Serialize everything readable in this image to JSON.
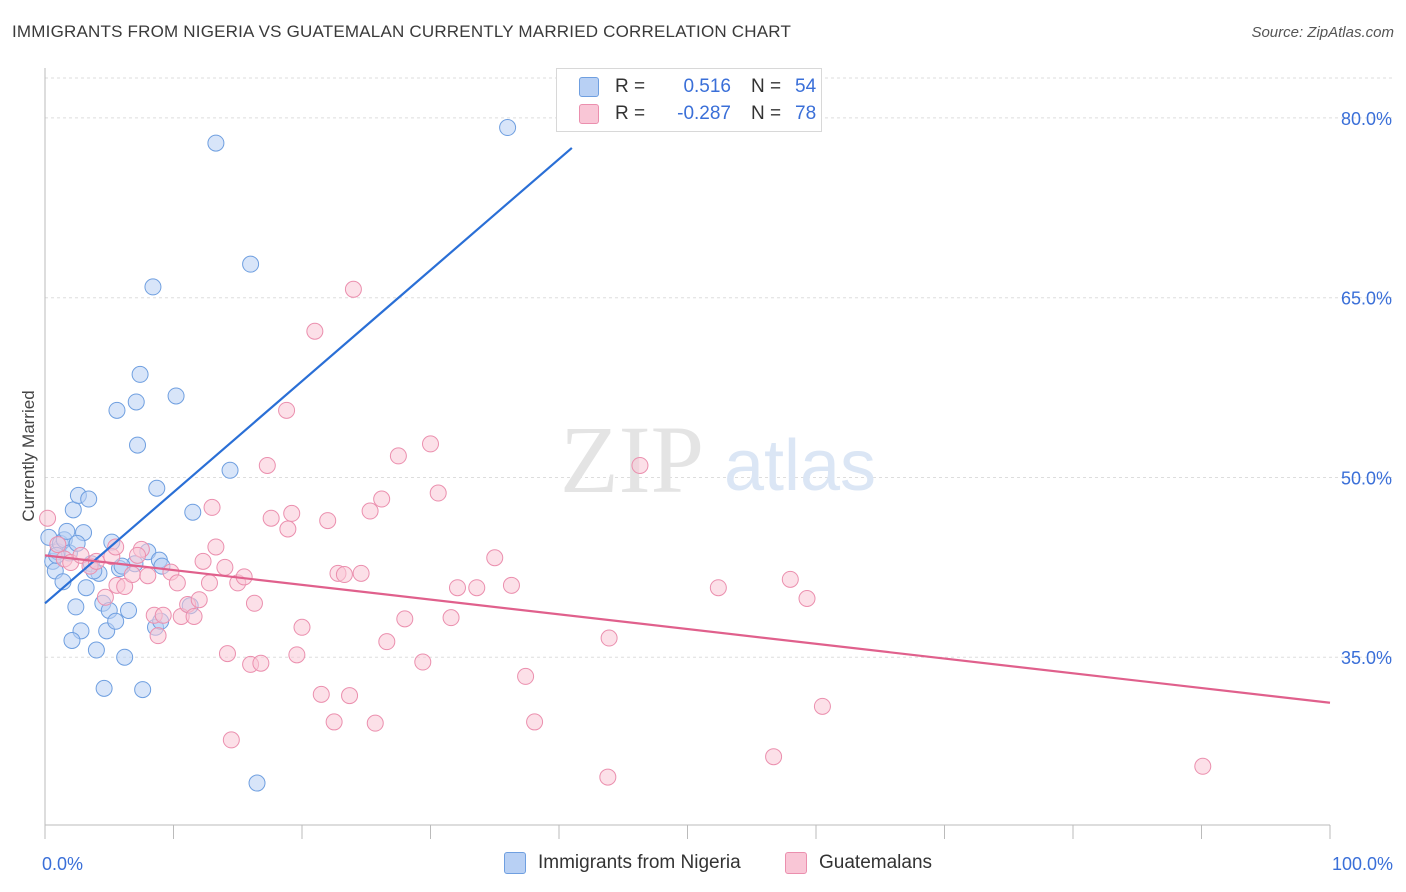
{
  "title": "IMMIGRANTS FROM NIGERIA VS GUATEMALAN CURRENTLY MARRIED CORRELATION CHART",
  "source": "Source: ZipAtlas.com",
  "watermark": {
    "zip": "ZIP",
    "atlas": "atlas"
  },
  "colors": {
    "blue_fill": "#b8d0f4",
    "blue_stroke": "#6f9fe0",
    "blue_line": "#2a6fd6",
    "pink_fill": "#f9c6d6",
    "pink_stroke": "#eb8fae",
    "pink_line": "#e0608c",
    "tick_label": "#3a6fd8",
    "grid": "#dddddd"
  },
  "legend": {
    "rows": [
      {
        "r_label": "R =",
        "r_value": "0.516",
        "n_label": "N =",
        "n_value": "54"
      },
      {
        "r_label": "R =",
        "r_value": "-0.287",
        "n_label": "N =",
        "n_value": "78"
      }
    ]
  },
  "bottom_legend": {
    "series1": "Immigrants from Nigeria",
    "series2": "Guatemalans"
  },
  "chart_data": {
    "type": "scatter",
    "title": "IMMIGRANTS FROM NIGERIA VS GUATEMALAN CURRENTLY MARRIED CORRELATION CHART",
    "xlabel": "",
    "ylabel": "Currently Married",
    "xlim": [
      0,
      100
    ],
    "ylim": [
      21,
      84
    ],
    "x_tick_labels": [
      "0.0%",
      "100.0%"
    ],
    "y_ticks": [
      35,
      50,
      65,
      80
    ],
    "y_tick_labels": [
      "35.0%",
      "50.0%",
      "65.0%",
      "80.0%"
    ],
    "grid": "horizontal dashed",
    "legend_position": "top-center",
    "series": [
      {
        "name": "Immigrants from Nigeria",
        "color": "#b8d0f4",
        "trend": {
          "x": [
            0,
            41
          ],
          "y": [
            39.5,
            77.5
          ]
        },
        "points": [
          [
            0.3,
            45.0
          ],
          [
            0.6,
            43.0
          ],
          [
            0.8,
            42.2
          ],
          [
            1.0,
            43.8
          ],
          [
            1.2,
            44.5
          ],
          [
            1.5,
            44.8
          ],
          [
            1.4,
            41.3
          ],
          [
            1.7,
            45.5
          ],
          [
            2.2,
            47.3
          ],
          [
            2.6,
            48.5
          ],
          [
            2.4,
            39.2
          ],
          [
            2.8,
            37.2
          ],
          [
            2.1,
            36.4
          ],
          [
            3.0,
            45.4
          ],
          [
            3.2,
            40.8
          ],
          [
            3.4,
            48.2
          ],
          [
            3.6,
            42.8
          ],
          [
            4.0,
            35.6
          ],
          [
            4.2,
            42.0
          ],
          [
            4.5,
            39.5
          ],
          [
            4.6,
            32.4
          ],
          [
            4.8,
            37.2
          ],
          [
            5.0,
            38.9
          ],
          [
            5.2,
            44.6
          ],
          [
            5.5,
            38.0
          ],
          [
            5.6,
            55.6
          ],
          [
            5.8,
            42.4
          ],
          [
            6.2,
            35.0
          ],
          [
            6.5,
            38.9
          ],
          [
            7.0,
            42.8
          ],
          [
            7.1,
            56.3
          ],
          [
            7.2,
            52.7
          ],
          [
            7.4,
            58.6
          ],
          [
            7.6,
            32.3
          ],
          [
            8.0,
            43.8
          ],
          [
            8.4,
            65.9
          ],
          [
            8.6,
            37.5
          ],
          [
            8.7,
            49.1
          ],
          [
            8.9,
            43.1
          ],
          [
            9.0,
            38.0
          ],
          [
            10.2,
            56.8
          ],
          [
            11.3,
            39.3
          ],
          [
            11.5,
            47.1
          ],
          [
            13.3,
            77.9
          ],
          [
            14.4,
            50.6
          ],
          [
            16.0,
            67.8
          ],
          [
            16.5,
            24.5
          ],
          [
            36.0,
            79.2
          ],
          [
            1.9,
            43.7
          ],
          [
            3.8,
            42.2
          ],
          [
            6.0,
            42.6
          ],
          [
            9.1,
            42.6
          ],
          [
            0.9,
            43.5
          ],
          [
            2.5,
            44.5
          ]
        ]
      },
      {
        "name": "Guatemalans",
        "color": "#f9c6d6",
        "trend": {
          "x": [
            0,
            100
          ],
          "y": [
            43.5,
            31.2
          ]
        },
        "points": [
          [
            0.2,
            46.6
          ],
          [
            1.0,
            44.4
          ],
          [
            1.5,
            43.2
          ],
          [
            2.0,
            42.9
          ],
          [
            2.8,
            43.5
          ],
          [
            3.5,
            42.6
          ],
          [
            4.0,
            43.0
          ],
          [
            4.7,
            40.0
          ],
          [
            5.2,
            43.4
          ],
          [
            5.6,
            41.0
          ],
          [
            6.2,
            40.9
          ],
          [
            6.8,
            41.9
          ],
          [
            7.5,
            44.0
          ],
          [
            8.0,
            41.8
          ],
          [
            8.5,
            38.5
          ],
          [
            8.8,
            36.8
          ],
          [
            9.2,
            38.5
          ],
          [
            9.8,
            42.1
          ],
          [
            10.3,
            41.2
          ],
          [
            10.6,
            38.4
          ],
          [
            11.1,
            39.4
          ],
          [
            11.6,
            38.4
          ],
          [
            12.0,
            39.8
          ],
          [
            12.8,
            41.2
          ],
          [
            13.0,
            47.5
          ],
          [
            13.3,
            44.2
          ],
          [
            14.0,
            42.5
          ],
          [
            14.2,
            35.3
          ],
          [
            14.5,
            28.1
          ],
          [
            15.0,
            41.2
          ],
          [
            15.5,
            41.7
          ],
          [
            16.0,
            34.4
          ],
          [
            16.3,
            39.5
          ],
          [
            16.8,
            34.5
          ],
          [
            17.3,
            51.0
          ],
          [
            17.6,
            46.6
          ],
          [
            18.8,
            55.6
          ],
          [
            18.9,
            45.7
          ],
          [
            19.2,
            47.0
          ],
          [
            19.6,
            35.2
          ],
          [
            20.0,
            37.5
          ],
          [
            21.0,
            62.2
          ],
          [
            21.5,
            31.9
          ],
          [
            22.0,
            46.4
          ],
          [
            22.5,
            29.6
          ],
          [
            22.8,
            42.0
          ],
          [
            23.3,
            41.9
          ],
          [
            23.7,
            31.8
          ],
          [
            24.0,
            65.7
          ],
          [
            24.6,
            42.0
          ],
          [
            25.3,
            47.2
          ],
          [
            25.7,
            29.5
          ],
          [
            26.2,
            48.2
          ],
          [
            26.6,
            36.3
          ],
          [
            27.5,
            51.8
          ],
          [
            28.0,
            38.2
          ],
          [
            29.4,
            34.6
          ],
          [
            30.0,
            52.8
          ],
          [
            30.6,
            48.7
          ],
          [
            31.6,
            38.3
          ],
          [
            32.1,
            40.8
          ],
          [
            33.6,
            40.8
          ],
          [
            35.0,
            43.3
          ],
          [
            36.3,
            41.0
          ],
          [
            37.4,
            33.4
          ],
          [
            38.1,
            29.6
          ],
          [
            43.8,
            25.0
          ],
          [
            43.9,
            36.6
          ],
          [
            46.3,
            51.0
          ],
          [
            52.4,
            40.8
          ],
          [
            56.7,
            26.7
          ],
          [
            58.0,
            41.5
          ],
          [
            59.3,
            39.9
          ],
          [
            60.5,
            30.9
          ],
          [
            90.1,
            25.9
          ],
          [
            5.5,
            44.2
          ],
          [
            12.3,
            43.0
          ],
          [
            7.2,
            43.5
          ]
        ]
      }
    ]
  }
}
